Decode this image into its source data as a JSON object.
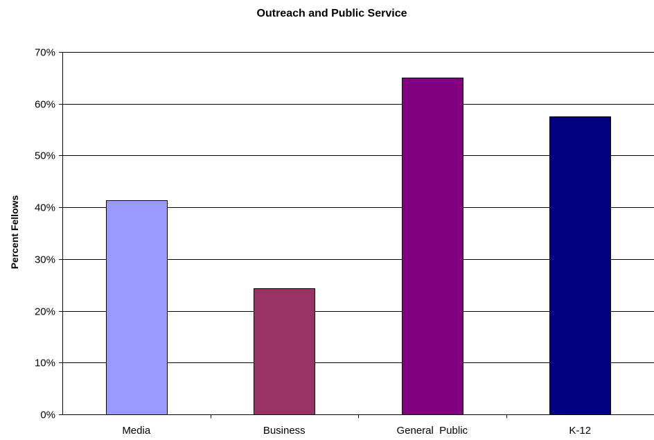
{
  "chart_data": {
    "type": "bar",
    "title": "Outreach and Public Service",
    "xlabel": "",
    "ylabel": "Percent Fellows",
    "categories": [
      "Media",
      "Business",
      "General  Public",
      "K-12"
    ],
    "values": [
      41.3,
      24.3,
      65.0,
      57.5
    ],
    "bar_colors": [
      "#9999ff",
      "#993366",
      "#800080",
      "#000080"
    ],
    "ylim": [
      0,
      70
    ],
    "yticks": [
      0,
      10,
      20,
      30,
      40,
      50,
      60,
      70
    ],
    "ytick_labels": [
      "0%",
      "10%",
      "20%",
      "30%",
      "40%",
      "50%",
      "60%",
      "70%"
    ],
    "grid": true,
    "legend": "none"
  }
}
